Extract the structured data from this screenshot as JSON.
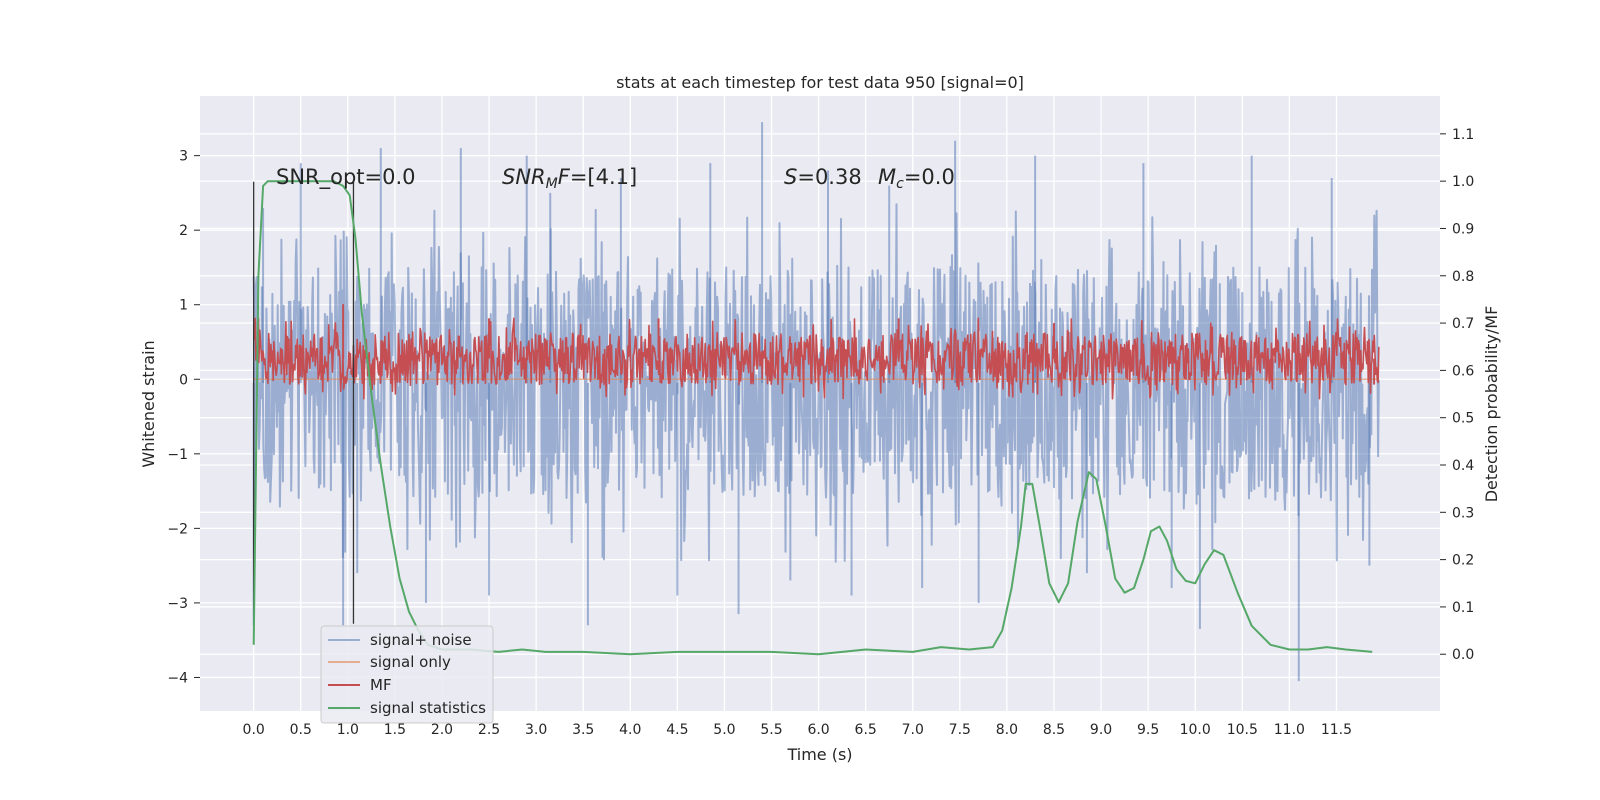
{
  "chart_data": {
    "type": "line",
    "title": "stats at each timestep for test data 950 [signal=0]",
    "xlabel": "Time (s)",
    "ylabel_left": "Whitened strain",
    "ylabel_right": "Detection probability/MF",
    "xlim": [
      -0.57,
      12.6
    ],
    "ylim_left": [
      -4.45,
      3.8
    ],
    "ylim_right": [
      -0.12,
      1.18
    ],
    "x_ticks": [
      0.0,
      0.5,
      1.0,
      1.5,
      2.0,
      2.5,
      3.0,
      3.5,
      4.0,
      4.5,
      5.0,
      5.5,
      6.0,
      6.5,
      7.0,
      7.5,
      8.0,
      8.5,
      9.0,
      9.5,
      10.0,
      10.5,
      11.0,
      11.5
    ],
    "x_tick_labels": [
      "0.0",
      "0.5",
      "1.0",
      "1.5",
      "2.0",
      "2.5",
      "3.0",
      "3.5",
      "4.0",
      "4.5",
      "5.0",
      "5.5",
      "6.0",
      "6.5",
      "7.0",
      "7.5",
      "8.0",
      "8.5",
      "9.0",
      "9.5",
      "10.0",
      "10.5",
      "11.0",
      "11.5"
    ],
    "y_left_ticks": [
      3,
      2,
      1,
      0,
      -1,
      -2,
      -3,
      -4
    ],
    "y_left_tick_labels": [
      "3",
      "2",
      "1",
      "0",
      "−1",
      "−2",
      "−3",
      "−4"
    ],
    "y_right_ticks": [
      1.1,
      1.0,
      0.9,
      0.8,
      0.7,
      0.6,
      0.5,
      0.4,
      0.3,
      0.2,
      0.1,
      0.0
    ],
    "y_right_tick_labels": [
      "1.1",
      "1.0",
      "0.9",
      "0.8",
      "0.7",
      "0.6",
      "0.5",
      "0.4",
      "0.3",
      "0.2",
      "0.1",
      "0.0"
    ],
    "grid": true,
    "legend_position": "lower-left",
    "annotations": {
      "snr_opt": "SNR_opt=0.0",
      "snr_mf_base": "SNR",
      "snr_mf_sub": "M",
      "snr_mf_mid": "F",
      "snr_mf_value": "=[4.1]",
      "s_label": "S",
      "s_value": "=0.38",
      "mc_base": "M",
      "mc_sub": "c",
      "mc_value": "=0.0"
    },
    "vertical_lines_x": [
      0.0,
      1.06
    ],
    "series": [
      {
        "name": "signal+ noise",
        "axis": "left",
        "color": "#4c72b0",
        "style": "noise band",
        "x_range": [
          0.0,
          11.95
        ],
        "core_range": [
          -1.6,
          1.5
        ],
        "extremes": [
          {
            "x": 0.0,
            "y": -3.3
          },
          {
            "x": 0.1,
            "y": 2.3
          },
          {
            "x": 0.5,
            "y": 2.9
          },
          {
            "x": 0.95,
            "y": -3.3
          },
          {
            "x": 1.1,
            "y": -2.6
          },
          {
            "x": 1.35,
            "y": 3.1
          },
          {
            "x": 1.83,
            "y": -3.0
          },
          {
            "x": 2.2,
            "y": 3.1
          },
          {
            "x": 2.5,
            "y": -2.9
          },
          {
            "x": 2.9,
            "y": 3.0
          },
          {
            "x": 3.15,
            "y": 2.5
          },
          {
            "x": 3.55,
            "y": -3.3
          },
          {
            "x": 3.9,
            "y": 2.7
          },
          {
            "x": 4.5,
            "y": -2.9
          },
          {
            "x": 4.85,
            "y": 2.9
          },
          {
            "x": 5.15,
            "y": -3.15
          },
          {
            "x": 5.4,
            "y": 3.45
          },
          {
            "x": 5.7,
            "y": -2.7
          },
          {
            "x": 6.1,
            "y": 2.8
          },
          {
            "x": 6.35,
            "y": -2.9
          },
          {
            "x": 6.75,
            "y": 2.6
          },
          {
            "x": 7.1,
            "y": -2.8
          },
          {
            "x": 7.45,
            "y": 3.2
          },
          {
            "x": 7.7,
            "y": -3.0
          },
          {
            "x": 8.3,
            "y": 3.0
          },
          {
            "x": 8.85,
            "y": -2.6
          },
          {
            "x": 9.45,
            "y": 2.9
          },
          {
            "x": 9.75,
            "y": -2.8
          },
          {
            "x": 10.05,
            "y": -3.35
          },
          {
            "x": 10.6,
            "y": 3.0
          },
          {
            "x": 11.1,
            "y": -4.05
          },
          {
            "x": 11.45,
            "y": 2.7
          },
          {
            "x": 11.85,
            "y": -2.5
          }
        ]
      },
      {
        "name": "signal only",
        "axis": "left",
        "color": "#dd8452",
        "x": [
          0.0,
          11.95
        ],
        "y": [
          0.0,
          0.0
        ]
      },
      {
        "name": "MF",
        "axis": "right",
        "color": "#c44e52",
        "style": "noise band",
        "x_range": [
          0.0,
          11.95
        ],
        "core_range": [
          0.57,
          0.68
        ],
        "extremes": [
          {
            "x": 0.05,
            "y": 0.71
          },
          {
            "x": 0.95,
            "y": 0.74
          },
          {
            "x": 2.5,
            "y": 0.71
          },
          {
            "x": 4.3,
            "y": 0.71
          },
          {
            "x": 6.85,
            "y": 0.71
          },
          {
            "x": 8.5,
            "y": 0.7
          },
          {
            "x": 11.9,
            "y": 0.57
          }
        ]
      },
      {
        "name": "signal statistics",
        "axis": "right",
        "color": "#55a868",
        "x": [
          0.0,
          0.05,
          0.1,
          0.15,
          0.2,
          0.3,
          0.5,
          0.7,
          0.85,
          0.95,
          1.02,
          1.08,
          1.15,
          1.25,
          1.35,
          1.45,
          1.55,
          1.65,
          1.75,
          1.85,
          2.0,
          2.3,
          2.6,
          2.85,
          3.1,
          3.5,
          4.0,
          4.5,
          5.0,
          5.5,
          6.0,
          6.5,
          7.0,
          7.3,
          7.6,
          7.85,
          7.95,
          8.05,
          8.15,
          8.2,
          8.27,
          8.35,
          8.45,
          8.55,
          8.65,
          8.75,
          8.87,
          8.95,
          9.05,
          9.15,
          9.25,
          9.35,
          9.45,
          9.53,
          9.62,
          9.7,
          9.8,
          9.9,
          10.0,
          10.1,
          10.2,
          10.3,
          10.45,
          10.6,
          10.8,
          11.0,
          11.2,
          11.4,
          11.6,
          11.88
        ],
        "y": [
          0.02,
          0.8,
          0.99,
          1.0,
          1.0,
          1.0,
          1.0,
          1.0,
          1.0,
          0.99,
          0.97,
          0.88,
          0.72,
          0.55,
          0.4,
          0.27,
          0.16,
          0.09,
          0.05,
          0.02,
          0.01,
          0.01,
          0.005,
          0.01,
          0.005,
          0.005,
          0.0,
          0.005,
          0.005,
          0.005,
          0.0,
          0.01,
          0.005,
          0.015,
          0.01,
          0.015,
          0.05,
          0.14,
          0.27,
          0.36,
          0.36,
          0.27,
          0.15,
          0.11,
          0.15,
          0.28,
          0.385,
          0.37,
          0.27,
          0.16,
          0.13,
          0.14,
          0.2,
          0.26,
          0.27,
          0.24,
          0.18,
          0.155,
          0.15,
          0.19,
          0.22,
          0.21,
          0.13,
          0.06,
          0.02,
          0.01,
          0.01,
          0.015,
          0.01,
          0.005
        ]
      }
    ]
  }
}
